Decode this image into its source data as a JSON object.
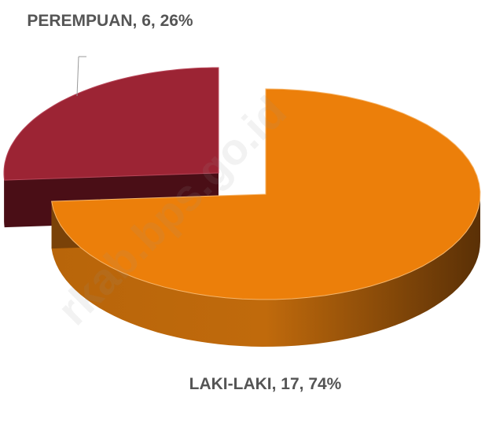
{
  "chart_data": {
    "type": "pie3d",
    "values": [
      17,
      6
    ],
    "value_labels": [
      "LAKI-LAKI, 17, 74%",
      "PEREMPUAN, 6, 26%"
    ],
    "colors": [
      "#ec7f0a",
      "#9c2434"
    ],
    "watermark": "rkab.bps.go.id"
  }
}
